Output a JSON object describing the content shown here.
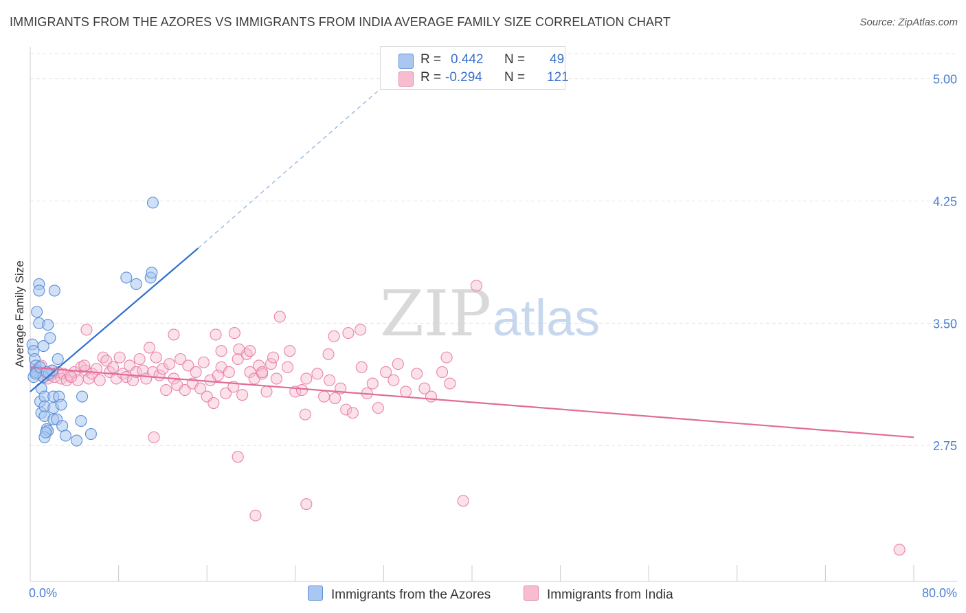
{
  "title": "IMMIGRANTS FROM THE AZORES VS IMMIGRANTS FROM INDIA AVERAGE FAMILY SIZE CORRELATION CHART",
  "source": "Source: ZipAtlas.com",
  "watermark": {
    "zip": "ZIP",
    "atlas": "atlas"
  },
  "legend": {
    "r_label": "R =",
    "n_label": "N =",
    "azores": {
      "r": "0.442",
      "n": "49"
    },
    "india": {
      "r": "-0.294",
      "n": "121"
    }
  },
  "bottom_legend": {
    "azores": "Immigrants from the Azores",
    "india": "Immigrants from India"
  },
  "colors": {
    "azores_fill": "#a9c7f0",
    "azores_stroke": "#5b8fd6",
    "azores_line": "#2f6fce",
    "india_fill": "#f7bcd0",
    "india_stroke": "#e883a8",
    "india_line": "#e06c9a",
    "tick_text": "#4a7fd0"
  },
  "chart_data": {
    "type": "scatter",
    "title": "IMMIGRANTS FROM THE AZORES VS IMMIGRANTS FROM INDIA AVERAGE FAMILY SIZE CORRELATION CHART",
    "ylabel": "Average Family Size",
    "xlim": [
      0,
      80
    ],
    "ylim": [
      2.0,
      5.18
    ],
    "x_tick_labels": [
      "0.0%",
      "80.0%"
    ],
    "y_ticks": [
      5.0,
      4.25,
      3.5,
      2.75
    ],
    "y_tick_labels": [
      "5.00",
      "4.25",
      "3.50",
      "2.75"
    ],
    "grid": "dashed horizontal",
    "series": [
      {
        "name": "Immigrants from the Azores",
        "points": [
          [
            0.2,
            3.37
          ],
          [
            0.3,
            3.33
          ],
          [
            0.4,
            3.28
          ],
          [
            0.5,
            3.24
          ],
          [
            0.6,
            3.21
          ],
          [
            0.3,
            3.17
          ],
          [
            0.5,
            3.2
          ],
          [
            0.6,
            3.57
          ],
          [
            0.8,
            3.74
          ],
          [
            0.8,
            3.7
          ],
          [
            0.8,
            3.5
          ],
          [
            1.2,
            3.36
          ],
          [
            1.6,
            3.49
          ],
          [
            1.8,
            3.41
          ],
          [
            2.2,
            3.7
          ],
          [
            0.9,
            3.02
          ],
          [
            1.0,
            3.1
          ],
          [
            1.3,
            3.05
          ],
          [
            1.0,
            2.95
          ],
          [
            1.3,
            2.93
          ],
          [
            1.3,
            2.99
          ],
          [
            1.5,
            2.85
          ],
          [
            1.6,
            2.84
          ],
          [
            1.3,
            2.8
          ],
          [
            1.4,
            2.83
          ],
          [
            2.1,
            2.91
          ],
          [
            2.1,
            2.98
          ],
          [
            2.1,
            3.05
          ],
          [
            2.4,
            2.91
          ],
          [
            2.5,
            3.28
          ],
          [
            2.6,
            3.05
          ],
          [
            2.8,
            3.0
          ],
          [
            2.9,
            2.87
          ],
          [
            3.2,
            2.81
          ],
          [
            4.2,
            2.78
          ],
          [
            4.6,
            2.9
          ],
          [
            4.7,
            3.05
          ],
          [
            5.5,
            2.82
          ],
          [
            1.2,
            3.17
          ],
          [
            1.7,
            3.19
          ],
          [
            2.0,
            3.21
          ],
          [
            0.5,
            3.19
          ],
          [
            0.9,
            3.23
          ],
          [
            1.5,
            3.2
          ],
          [
            11.1,
            4.24
          ],
          [
            8.7,
            3.78
          ],
          [
            9.6,
            3.74
          ],
          [
            10.9,
            3.78
          ],
          [
            11.0,
            3.81
          ]
        ]
      },
      {
        "name": "Immigrants from India",
        "points": [
          [
            0.5,
            3.22
          ],
          [
            0.8,
            3.19
          ],
          [
            1.0,
            3.24
          ],
          [
            1.2,
            3.17
          ],
          [
            1.4,
            3.2
          ],
          [
            1.6,
            3.16
          ],
          [
            1.8,
            3.18
          ],
          [
            2.0,
            3.21
          ],
          [
            2.2,
            3.17
          ],
          [
            2.5,
            3.2
          ],
          [
            2.8,
            3.16
          ],
          [
            3.0,
            3.19
          ],
          [
            3.3,
            3.15
          ],
          [
            3.6,
            3.18
          ],
          [
            4.0,
            3.2
          ],
          [
            4.3,
            3.15
          ],
          [
            4.6,
            3.23
          ],
          [
            5.0,
            3.21
          ],
          [
            5.3,
            3.16
          ],
          [
            5.6,
            3.19
          ],
          [
            5.1,
            3.46
          ],
          [
            6.0,
            3.22
          ],
          [
            6.3,
            3.15
          ],
          [
            6.6,
            3.29
          ],
          [
            6.9,
            3.27
          ],
          [
            7.2,
            3.2
          ],
          [
            7.5,
            3.23
          ],
          [
            7.8,
            3.16
          ],
          [
            8.1,
            3.29
          ],
          [
            8.4,
            3.19
          ],
          [
            8.7,
            3.17
          ],
          [
            9.0,
            3.24
          ],
          [
            9.3,
            3.15
          ],
          [
            9.6,
            3.2
          ],
          [
            9.9,
            3.28
          ],
          [
            10.2,
            3.21
          ],
          [
            10.5,
            3.16
          ],
          [
            10.8,
            3.35
          ],
          [
            11.1,
            3.2
          ],
          [
            11.4,
            3.29
          ],
          [
            11.7,
            3.18
          ],
          [
            12.0,
            3.22
          ],
          [
            12.3,
            3.09
          ],
          [
            12.6,
            3.25
          ],
          [
            13.0,
            3.16
          ],
          [
            13.3,
            3.12
          ],
          [
            13.6,
            3.28
          ],
          [
            14.0,
            3.09
          ],
          [
            14.3,
            3.24
          ],
          [
            14.7,
            3.13
          ],
          [
            15.0,
            3.2
          ],
          [
            15.4,
            3.1
          ],
          [
            15.7,
            3.26
          ],
          [
            16.0,
            3.05
          ],
          [
            16.3,
            3.15
          ],
          [
            16.6,
            3.01
          ],
          [
            17.0,
            3.18
          ],
          [
            17.3,
            3.23
          ],
          [
            17.7,
            3.07
          ],
          [
            18.0,
            3.2
          ],
          [
            18.4,
            3.11
          ],
          [
            18.8,
            3.28
          ],
          [
            19.2,
            3.06
          ],
          [
            19.6,
            3.31
          ],
          [
            19.9,
            3.2
          ],
          [
            20.3,
            3.16
          ],
          [
            20.7,
            3.24
          ],
          [
            21.0,
            3.19
          ],
          [
            21.4,
            3.08
          ],
          [
            21.8,
            3.25
          ],
          [
            22.0,
            3.29
          ],
          [
            22.3,
            3.16
          ],
          [
            23.3,
            3.23
          ],
          [
            24.0,
            3.08
          ],
          [
            24.6,
            3.09
          ],
          [
            24.9,
            2.94
          ],
          [
            26.0,
            3.19
          ],
          [
            26.6,
            3.05
          ],
          [
            27.1,
            3.15
          ],
          [
            27.6,
            3.04
          ],
          [
            28.1,
            3.1
          ],
          [
            28.6,
            2.97
          ],
          [
            29.2,
            2.95
          ],
          [
            30.0,
            3.23
          ],
          [
            30.5,
            3.07
          ],
          [
            31.0,
            3.13
          ],
          [
            31.5,
            2.98
          ],
          [
            32.2,
            3.2
          ],
          [
            32.9,
            3.15
          ],
          [
            33.3,
            3.25
          ],
          [
            34.0,
            3.08
          ],
          [
            35.0,
            3.19
          ],
          [
            35.7,
            3.1
          ],
          [
            36.3,
            3.05
          ],
          [
            37.3,
            3.2
          ],
          [
            38.0,
            3.13
          ],
          [
            3.7,
            3.17
          ],
          [
            4.9,
            3.24
          ],
          [
            13.0,
            3.43
          ],
          [
            16.8,
            3.43
          ],
          [
            17.3,
            3.33
          ],
          [
            18.5,
            3.44
          ],
          [
            18.9,
            3.34
          ],
          [
            19.9,
            3.33
          ],
          [
            22.6,
            3.54
          ],
          [
            21.0,
            3.2
          ],
          [
            23.5,
            3.33
          ],
          [
            25.0,
            3.16
          ],
          [
            27.0,
            3.31
          ],
          [
            27.5,
            3.42
          ],
          [
            28.8,
            3.44
          ],
          [
            29.9,
            3.46
          ],
          [
            37.7,
            3.29
          ],
          [
            40.4,
            3.73
          ],
          [
            11.2,
            2.8
          ],
          [
            18.8,
            2.68
          ],
          [
            20.4,
            2.32
          ],
          [
            25.0,
            2.39
          ],
          [
            39.2,
            2.41
          ],
          [
            78.7,
            2.11
          ]
        ]
      }
    ],
    "trend_lines": [
      {
        "series": "Immigrants from the Azores",
        "solid": [
          [
            0,
            3.08
          ],
          [
            15.2,
            3.96
          ]
        ],
        "dashed": [
          [
            15.2,
            3.96
          ],
          [
            32.4,
            4.98
          ]
        ]
      },
      {
        "series": "Immigrants from India",
        "solid": [
          [
            0,
            3.23
          ],
          [
            80,
            2.8
          ]
        ]
      }
    ]
  }
}
